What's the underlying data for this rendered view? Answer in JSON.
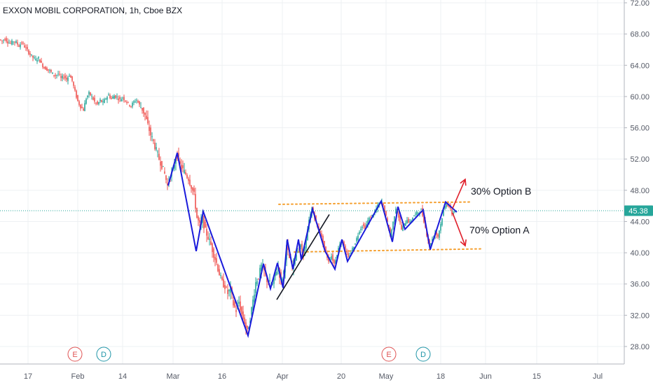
{
  "chart_data": {
    "type": "candlestick",
    "title": "EXXON MOBIL CORPORATION, 1h, Cboe BZX",
    "price_axis": {
      "ticks": [
        "72.00",
        "68.00",
        "64.00",
        "60.00",
        "56.00",
        "52.00",
        "48.00",
        "44.00",
        "40.00",
        "36.00",
        "32.00",
        "28.00"
      ],
      "range": [
        27,
        72.2
      ],
      "position": "right"
    },
    "time_axis": {
      "ticks": [
        "17",
        "Feb",
        "14",
        "Mar",
        "16",
        "Apr",
        "20",
        "May",
        "18",
        "Jun",
        "15",
        "Jul"
      ]
    },
    "last_price": {
      "label": "45.38",
      "value": 45.38,
      "color": "#26a69a"
    },
    "grid": true,
    "price_path": [
      {
        "t": 0,
        "p": 67.3
      },
      {
        "t": 4,
        "p": 67.1
      },
      {
        "t": 8,
        "p": 67.4
      },
      {
        "t": 12,
        "p": 67.0
      },
      {
        "t": 16,
        "p": 66.8
      },
      {
        "t": 20,
        "p": 67.1
      },
      {
        "t": 24,
        "p": 66.9
      },
      {
        "t": 28,
        "p": 66.5
      },
      {
        "t": 32,
        "p": 66.9
      },
      {
        "t": 36,
        "p": 66.4
      },
      {
        "t": 40,
        "p": 65.9
      },
      {
        "t": 44,
        "p": 65.4
      },
      {
        "t": 48,
        "p": 65.0
      },
      {
        "t": 52,
        "p": 64.7
      },
      {
        "t": 56,
        "p": 64.9
      },
      {
        "t": 60,
        "p": 64.2
      },
      {
        "t": 64,
        "p": 63.7
      },
      {
        "t": 68,
        "p": 63.5
      },
      {
        "t": 72,
        "p": 63.3
      },
      {
        "t": 76,
        "p": 62.9
      },
      {
        "t": 80,
        "p": 62.7
      },
      {
        "t": 84,
        "p": 62.9
      },
      {
        "t": 88,
        "p": 62.3
      },
      {
        "t": 92,
        "p": 62.6
      },
      {
        "t": 96,
        "p": 62.2
      },
      {
        "t": 100,
        "p": 62.8
      },
      {
        "t": 104,
        "p": 62.0
      },
      {
        "t": 108,
        "p": 60.6
      },
      {
        "t": 112,
        "p": 59.4
      },
      {
        "t": 116,
        "p": 58.7
      },
      {
        "t": 120,
        "p": 58.3
      },
      {
        "t": 124,
        "p": 59.8
      },
      {
        "t": 128,
        "p": 60.4
      },
      {
        "t": 132,
        "p": 60.0
      },
      {
        "t": 136,
        "p": 59.3
      },
      {
        "t": 140,
        "p": 59.0
      },
      {
        "t": 144,
        "p": 59.5
      },
      {
        "t": 148,
        "p": 59.2
      },
      {
        "t": 152,
        "p": 59.8
      },
      {
        "t": 156,
        "p": 60.2
      },
      {
        "t": 160,
        "p": 59.7
      },
      {
        "t": 164,
        "p": 60.1
      },
      {
        "t": 168,
        "p": 59.9
      },
      {
        "t": 172,
        "p": 59.6
      },
      {
        "t": 176,
        "p": 59.9
      },
      {
        "t": 180,
        "p": 59.5
      },
      {
        "t": 184,
        "p": 59.1
      },
      {
        "t": 188,
        "p": 58.8
      },
      {
        "t": 192,
        "p": 59.3
      },
      {
        "t": 196,
        "p": 59.6
      },
      {
        "t": 200,
        "p": 58.9
      },
      {
        "t": 204,
        "p": 58.4
      },
      {
        "t": 208,
        "p": 57.6
      },
      {
        "t": 212,
        "p": 56.3
      },
      {
        "t": 216,
        "p": 55.1
      },
      {
        "t": 220,
        "p": 54.2
      },
      {
        "t": 224,
        "p": 53.1
      },
      {
        "t": 228,
        "p": 52.0
      },
      {
        "t": 232,
        "p": 51.2
      },
      {
        "t": 236,
        "p": 50.1
      },
      {
        "t": 240,
        "p": 48.6
      },
      {
        "t": 244,
        "p": 49.8
      },
      {
        "t": 248,
        "p": 50.6
      },
      {
        "t": 253,
        "p": 52.8
      },
      {
        "t": 258,
        "p": 51.2
      },
      {
        "t": 262,
        "p": 50.6
      },
      {
        "t": 266,
        "p": 50.1
      },
      {
        "t": 270,
        "p": 49.5
      },
      {
        "t": 274,
        "p": 48.5
      },
      {
        "t": 278,
        "p": 47.4
      },
      {
        "t": 282,
        "p": 44.5
      },
      {
        "t": 286,
        "p": 43.5
      },
      {
        "t": 290,
        "p": 44.3
      },
      {
        "t": 294,
        "p": 42.8
      },
      {
        "t": 298,
        "p": 42.0
      },
      {
        "t": 302,
        "p": 41.0
      },
      {
        "t": 306,
        "p": 39.8
      },
      {
        "t": 310,
        "p": 38.7
      },
      {
        "t": 314,
        "p": 37.3
      },
      {
        "t": 318,
        "p": 36.2
      },
      {
        "t": 322,
        "p": 35.7
      },
      {
        "t": 326,
        "p": 34.8
      },
      {
        "t": 330,
        "p": 35.4
      },
      {
        "t": 334,
        "p": 33.4
      },
      {
        "t": 338,
        "p": 32.6
      },
      {
        "t": 342,
        "p": 33.7
      },
      {
        "t": 346,
        "p": 32.1
      },
      {
        "t": 350,
        "p": 31.1
      },
      {
        "t": 354,
        "p": 29.8
      },
      {
        "t": 358,
        "p": 31.7
      },
      {
        "t": 362,
        "p": 33.9
      },
      {
        "t": 366,
        "p": 36.2
      },
      {
        "t": 370,
        "p": 37.0
      },
      {
        "t": 374,
        "p": 38.3
      },
      {
        "t": 378,
        "p": 37.6
      },
      {
        "t": 382,
        "p": 36.5
      },
      {
        "t": 386,
        "p": 36.1
      },
      {
        "t": 390,
        "p": 35.9
      },
      {
        "t": 394,
        "p": 37.5
      },
      {
        "t": 398,
        "p": 38.1
      },
      {
        "t": 402,
        "p": 36.3
      },
      {
        "t": 406,
        "p": 37.6
      },
      {
        "t": 410,
        "p": 40.7
      },
      {
        "t": 414,
        "p": 39.3
      },
      {
        "t": 418,
        "p": 38.2
      },
      {
        "t": 422,
        "p": 39.2
      },
      {
        "t": 426,
        "p": 40.5
      },
      {
        "t": 430,
        "p": 40.9
      },
      {
        "t": 434,
        "p": 39.7
      },
      {
        "t": 438,
        "p": 41.7
      },
      {
        "t": 442,
        "p": 44.1
      },
      {
        "t": 446,
        "p": 45.6
      },
      {
        "t": 450,
        "p": 44.6
      },
      {
        "t": 454,
        "p": 43.2
      },
      {
        "t": 458,
        "p": 42.6
      },
      {
        "t": 462,
        "p": 41.3
      },
      {
        "t": 466,
        "p": 39.9
      },
      {
        "t": 470,
        "p": 39.0
      },
      {
        "t": 474,
        "p": 39.6
      },
      {
        "t": 478,
        "p": 38.6
      },
      {
        "t": 482,
        "p": 39.9
      },
      {
        "t": 486,
        "p": 41.2
      },
      {
        "t": 490,
        "p": 41.6
      },
      {
        "t": 494,
        "p": 40.4
      },
      {
        "t": 498,
        "p": 39.3
      },
      {
        "t": 502,
        "p": 40.1
      },
      {
        "t": 506,
        "p": 40.9
      },
      {
        "t": 510,
        "p": 41.8
      },
      {
        "t": 514,
        "p": 42.9
      },
      {
        "t": 518,
        "p": 43.5
      },
      {
        "t": 522,
        "p": 43.2
      },
      {
        "t": 526,
        "p": 44.1
      },
      {
        "t": 530,
        "p": 44.6
      },
      {
        "t": 534,
        "p": 44.9
      },
      {
        "t": 538,
        "p": 45.6
      },
      {
        "t": 542,
        "p": 46.3
      },
      {
        "t": 546,
        "p": 46.5
      },
      {
        "t": 550,
        "p": 45.4
      },
      {
        "t": 554,
        "p": 43.8
      },
      {
        "t": 558,
        "p": 42.1
      },
      {
        "t": 562,
        "p": 43.9
      },
      {
        "t": 566,
        "p": 45.8
      },
      {
        "t": 570,
        "p": 44.6
      },
      {
        "t": 574,
        "p": 43.0
      },
      {
        "t": 578,
        "p": 43.6
      },
      {
        "t": 582,
        "p": 44.3
      },
      {
        "t": 586,
        "p": 43.8
      },
      {
        "t": 590,
        "p": 44.6
      },
      {
        "t": 594,
        "p": 44.9
      },
      {
        "t": 598,
        "p": 45.2
      },
      {
        "t": 602,
        "p": 45.5
      },
      {
        "t": 606,
        "p": 44.1
      },
      {
        "t": 610,
        "p": 42.4
      },
      {
        "t": 614,
        "p": 40.9
      },
      {
        "t": 618,
        "p": 41.8
      },
      {
        "t": 622,
        "p": 42.6
      },
      {
        "t": 626,
        "p": 42.1
      },
      {
        "t": 630,
        "p": 43.7
      },
      {
        "t": 634,
        "p": 45.4
      },
      {
        "t": 638,
        "p": 46.4
      },
      {
        "t": 642,
        "p": 45.9
      },
      {
        "t": 646,
        "p": 45.0
      },
      {
        "t": 650,
        "p": 45.38
      }
    ],
    "zigzag_color": "#1a1adb",
    "zigzag": [
      {
        "t": 240,
        "p": 48.6
      },
      {
        "t": 253,
        "p": 52.8
      },
      {
        "t": 280,
        "p": 40.2
      },
      {
        "t": 290,
        "p": 45.3
      },
      {
        "t": 354,
        "p": 29.4
      },
      {
        "t": 376,
        "p": 38.6
      },
      {
        "t": 386,
        "p": 35.4
      },
      {
        "t": 396,
        "p": 38.7
      },
      {
        "t": 404,
        "p": 35.5
      },
      {
        "t": 410,
        "p": 41.7
      },
      {
        "t": 418,
        "p": 37.9
      },
      {
        "t": 426,
        "p": 41.7
      },
      {
        "t": 430,
        "p": 39.1
      },
      {
        "t": 446,
        "p": 45.6
      },
      {
        "t": 464,
        "p": 40.2
      },
      {
        "t": 478,
        "p": 37.9
      },
      {
        "t": 488,
        "p": 41.7
      },
      {
        "t": 496,
        "p": 38.9
      },
      {
        "t": 544,
        "p": 46.6
      },
      {
        "t": 560,
        "p": 41.4
      },
      {
        "t": 568,
        "p": 45.9
      },
      {
        "t": 578,
        "p": 43.0
      },
      {
        "t": 604,
        "p": 45.5
      },
      {
        "t": 614,
        "p": 40.4
      },
      {
        "t": 636,
        "p": 46.5
      },
      {
        "t": 652,
        "p": 45.2
      }
    ],
    "trendline": {
      "from": {
        "t": 395,
        "p": 34.0
      },
      "to": {
        "t": 470,
        "p": 44.9
      },
      "color": "#131722"
    },
    "channel_color": "#f5a030",
    "channel_upper": {
      "from": {
        "t": 398,
        "p": 46.2
      },
      "to": {
        "t": 670,
        "p": 46.5
      }
    },
    "channel_lower": {
      "from": {
        "t": 420,
        "p": 40.1
      },
      "to": {
        "t": 688,
        "p": 40.5
      }
    },
    "projection_color": "#e0202c",
    "projections": [
      {
        "from": {
          "t": 646,
          "p": 45.7
        },
        "to": {
          "t": 664,
          "p": 49.4
        }
      },
      {
        "from": {
          "t": 646,
          "p": 45.1
        },
        "to": {
          "t": 664,
          "p": 40.9
        }
      }
    ],
    "annotations": [
      {
        "text": "30% Option B",
        "t": 672,
        "p": 47.9
      },
      {
        "text": "70% Option A",
        "t": 670,
        "p": 42.9
      }
    ],
    "event_badges": [
      {
        "letter": "E",
        "t": 107,
        "color": "#e05555"
      },
      {
        "letter": "D",
        "t": 148,
        "color": "#2196a8"
      },
      {
        "letter": "E",
        "t": 555,
        "color": "#e05555"
      },
      {
        "letter": "D",
        "t": 604,
        "color": "#2196a8"
      }
    ]
  }
}
